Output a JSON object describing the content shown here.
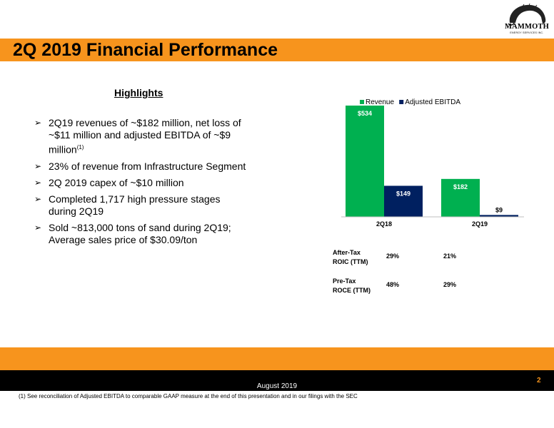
{
  "logo": {
    "word": "MAMMOTH",
    "sub": "ENERGY SERVICES INC."
  },
  "title": "2Q 2019 Financial Performance",
  "highlights": {
    "heading": "Highlights",
    "items": [
      {
        "text": "2Q19 revenues of ~$182 million, net loss of ~$11 million and adjusted EBITDA of ~$9 million",
        "sup": "(1)"
      },
      {
        "text": "23% of revenue from Infrastructure Segment",
        "sup": ""
      },
      {
        "text": "2Q 2019 capex of ~$10 million",
        "sup": ""
      },
      {
        "text": "Completed 1,717 high pressure stages during 2Q19",
        "sup": ""
      },
      {
        "text": "Sold ~813,000 tons of sand during 2Q19; Average sales price of $30.09/ton",
        "sup": ""
      }
    ]
  },
  "chart_data": {
    "type": "bar",
    "categories": [
      "2Q18",
      "2Q19"
    ],
    "series": [
      {
        "name": "Revenue",
        "values": [
          534,
          182
        ],
        "labels": [
          "$534",
          "$182"
        ],
        "color": "#00b050"
      },
      {
        "name": "Adjusted EBITDA",
        "values": [
          149,
          9
        ],
        "labels": [
          "$149",
          "$9"
        ],
        "color": "#002060"
      }
    ],
    "ylim": [
      0,
      534
    ],
    "legend_position": "top",
    "grid": false
  },
  "ratios": [
    {
      "label_line1": "After-Tax",
      "label_line2": "ROIC (TTM)",
      "v2q18": "29%",
      "v2q19": "21%"
    },
    {
      "label_line1": "Pre-Tax",
      "label_line2": "ROCE (TTM)",
      "v2q18": "48%",
      "v2q19": "29%"
    }
  ],
  "footer": {
    "date": "August 2019",
    "page": "2",
    "footnote": "(1) See reconciliation of Adjusted EBITDA to comparable GAAP measure at the end of this presentation and in our filings with the SEC"
  },
  "colors": {
    "orange": "#f7941d",
    "green": "#00b050",
    "navy": "#002060"
  }
}
